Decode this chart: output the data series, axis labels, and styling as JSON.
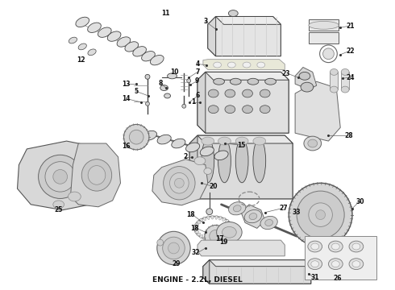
{
  "title": "ENGINE - 2.2L, DIESEL",
  "title_fontsize": 6.5,
  "title_fontweight": "bold",
  "bg_color": "#ffffff",
  "fig_width": 4.9,
  "fig_height": 3.6,
  "dpi": 100,
  "line_color": "#444444",
  "fill_light": "#e8e8e8",
  "fill_mid": "#d8d8d8",
  "fill_dark": "#c8c8c8"
}
